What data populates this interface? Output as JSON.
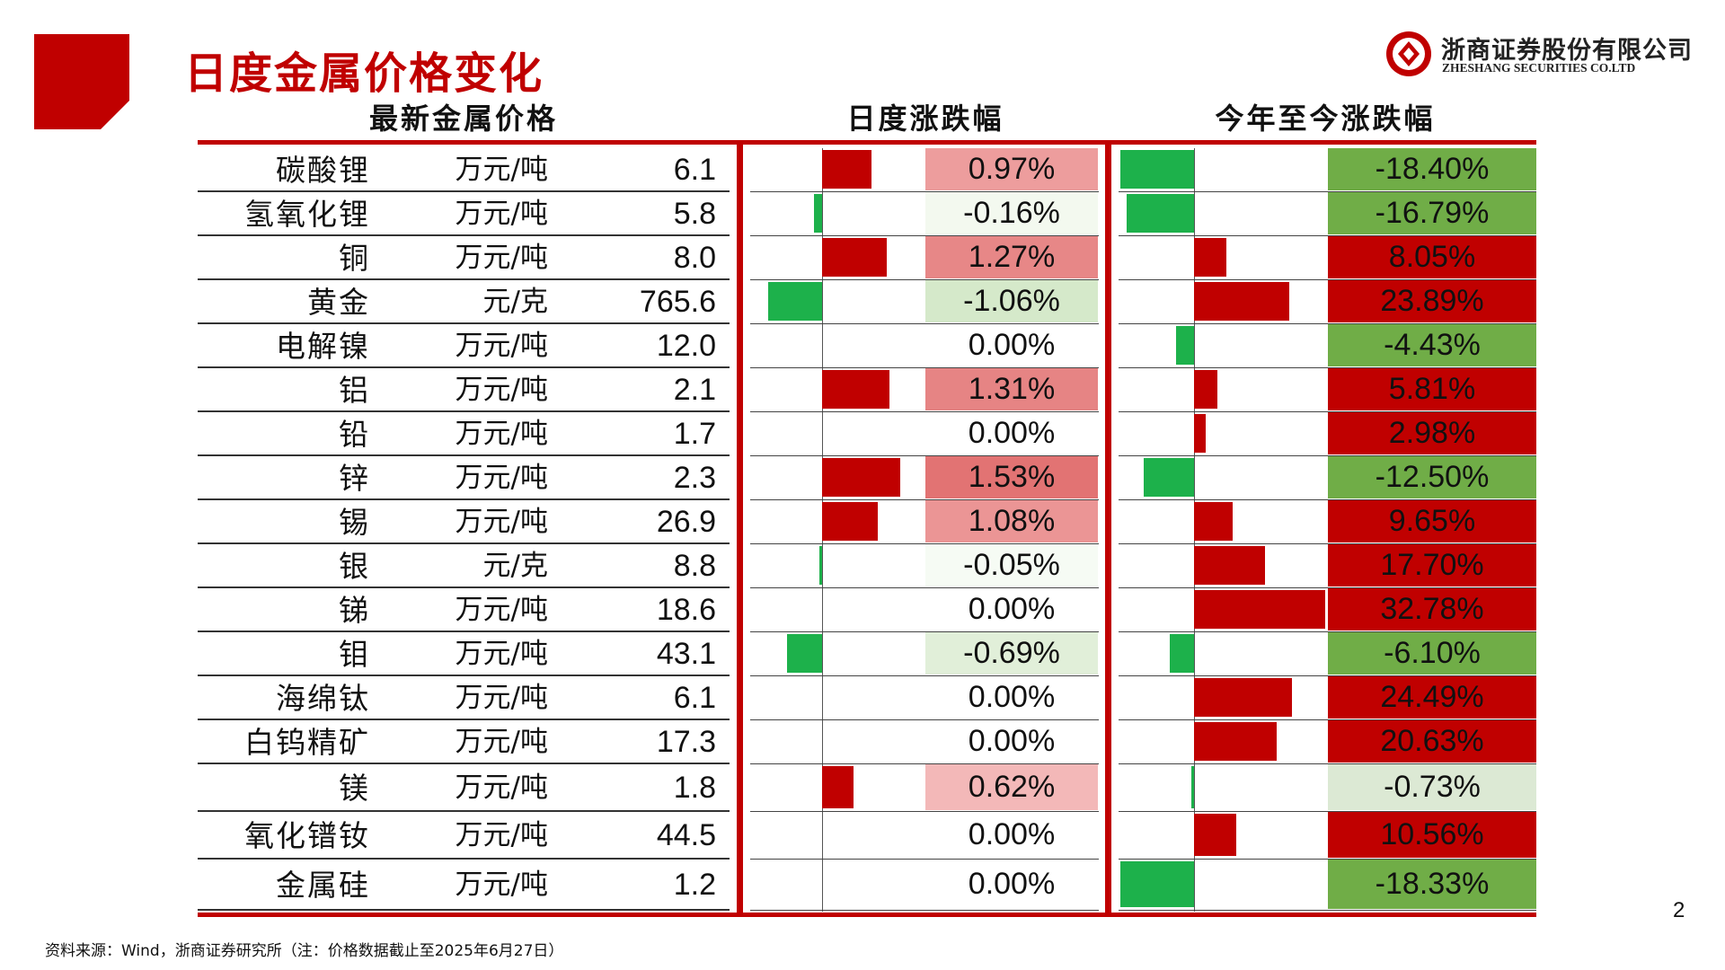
{
  "title": "日度金属价格变化",
  "logo": {
    "name_cn": "浙商证券股份有限公司",
    "name_en": "ZHESHANG SECURITIES CO.LTD"
  },
  "headers": {
    "latest": "最新金属价格",
    "daily": "日度涨跌幅",
    "ytd": "今年至今涨跌幅"
  },
  "rows": [
    {
      "name": "碳酸锂",
      "unit": "万元/吨",
      "price": "6.1",
      "daily": 0.97,
      "daily_label": "0.97%",
      "ytd": -18.4,
      "ytd_label": "-18.40%"
    },
    {
      "name": "氢氧化锂",
      "unit": "万元/吨",
      "price": "5.8",
      "daily": -0.16,
      "daily_label": "-0.16%",
      "ytd": -16.79,
      "ytd_label": "-16.79%"
    },
    {
      "name": "铜",
      "unit": "万元/吨",
      "price": "8.0",
      "daily": 1.27,
      "daily_label": "1.27%",
      "ytd": 8.05,
      "ytd_label": "8.05%"
    },
    {
      "name": "黄金",
      "unit": "元/克",
      "price": "765.6",
      "daily": -1.06,
      "daily_label": "-1.06%",
      "ytd": 23.89,
      "ytd_label": "23.89%"
    },
    {
      "name": "电解镍",
      "unit": "万元/吨",
      "price": "12.0",
      "daily": 0.0,
      "daily_label": "0.00%",
      "ytd": -4.43,
      "ytd_label": "-4.43%"
    },
    {
      "name": "铝",
      "unit": "万元/吨",
      "price": "2.1",
      "daily": 1.31,
      "daily_label": "1.31%",
      "ytd": 5.81,
      "ytd_label": "5.81%"
    },
    {
      "name": "铅",
      "unit": "万元/吨",
      "price": "1.7",
      "daily": 0.0,
      "daily_label": "0.00%",
      "ytd": 2.98,
      "ytd_label": "2.98%"
    },
    {
      "name": "锌",
      "unit": "万元/吨",
      "price": "2.3",
      "daily": 1.53,
      "daily_label": "1.53%",
      "ytd": -12.5,
      "ytd_label": "-12.50%"
    },
    {
      "name": "锡",
      "unit": "万元/吨",
      "price": "26.9",
      "daily": 1.08,
      "daily_label": "1.08%",
      "ytd": 9.65,
      "ytd_label": "9.65%"
    },
    {
      "name": "银",
      "unit": "元/克",
      "price": "8.8",
      "daily": -0.05,
      "daily_label": "-0.05%",
      "ytd": 17.7,
      "ytd_label": "17.70%"
    },
    {
      "name": "锑",
      "unit": "万元/吨",
      "price": "18.6",
      "daily": 0.0,
      "daily_label": "0.00%",
      "ytd": 32.78,
      "ytd_label": "32.78%"
    },
    {
      "name": "钼",
      "unit": "万元/吨",
      "price": "43.1",
      "daily": -0.69,
      "daily_label": "-0.69%",
      "ytd": -6.1,
      "ytd_label": "-6.10%"
    },
    {
      "name": "海绵钛",
      "unit": "万元/吨",
      "price": "6.1",
      "daily": 0.0,
      "daily_label": "0.00%",
      "ytd": 24.49,
      "ytd_label": "24.49%"
    },
    {
      "name": "白钨精矿",
      "unit": "万元/吨",
      "price": "17.3",
      "daily": 0.0,
      "daily_label": "0.00%",
      "ytd": 20.63,
      "ytd_label": "20.63%"
    },
    {
      "name": "镁",
      "unit": "万元/吨",
      "price": "1.8",
      "daily": 0.62,
      "daily_label": "0.62%",
      "ytd": -0.73,
      "ytd_label": "-0.73%"
    },
    {
      "name": "氧化镨钕",
      "unit": "万元/吨",
      "price": "44.5",
      "daily": 0.0,
      "daily_label": "0.00%",
      "ytd": 10.56,
      "ytd_label": "10.56%"
    },
    {
      "name": "金属硅",
      "unit": "万元/吨",
      "price": "1.2",
      "daily": 0.0,
      "daily_label": "0.00%",
      "ytd": -18.33,
      "ytd_label": "-18.33%"
    }
  ],
  "colors": {
    "brand_red": "#c00000",
    "pos_bar": "#c00000",
    "neg_bar": "#1db14b",
    "ytd_pos": "#c00000",
    "ytd_neg": "#70ad47",
    "ytd_neg_light": "#dce9d4"
  },
  "footer": "资料来源：Wind，浙商证券研究所（注：价格数据截止至2025年6月27日）",
  "page_number": "2"
}
